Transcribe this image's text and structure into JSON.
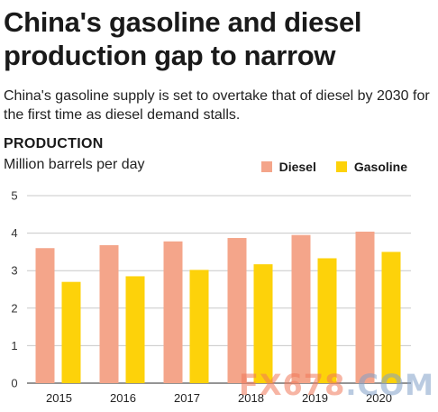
{
  "header": {
    "title": "China's gasoline and diesel production gap to narrow",
    "subtitle": "China's gasoline supply is set to overtake that of diesel by 2030 for the first time as diesel demand stalls.",
    "section": "PRODUCTION",
    "units": "Million barrels per day"
  },
  "legend": [
    {
      "label": "Diesel",
      "color": "#f4a58a"
    },
    {
      "label": "Gasoline",
      "color": "#fdd20a"
    }
  ],
  "watermark": {
    "part_a": "FX678",
    "part_b": ".COM"
  },
  "chart_data": {
    "type": "bar",
    "categories": [
      "2015",
      "2016",
      "2017",
      "2018",
      "2019",
      "2020"
    ],
    "series": [
      {
        "name": "Diesel",
        "color": "#f4a58a",
        "values": [
          3.6,
          3.68,
          3.78,
          3.87,
          3.95,
          4.04
        ]
      },
      {
        "name": "Gasoline",
        "color": "#fdd20a",
        "values": [
          2.7,
          2.85,
          3.02,
          3.17,
          3.33,
          3.5
        ]
      }
    ],
    "title": "PRODUCTION",
    "ylabel": "Million barrels per day",
    "ylim": [
      0,
      5
    ],
    "yticks": [
      0,
      1,
      2,
      3,
      4,
      5
    ],
    "grid": true,
    "legend_position": "top-right"
  }
}
